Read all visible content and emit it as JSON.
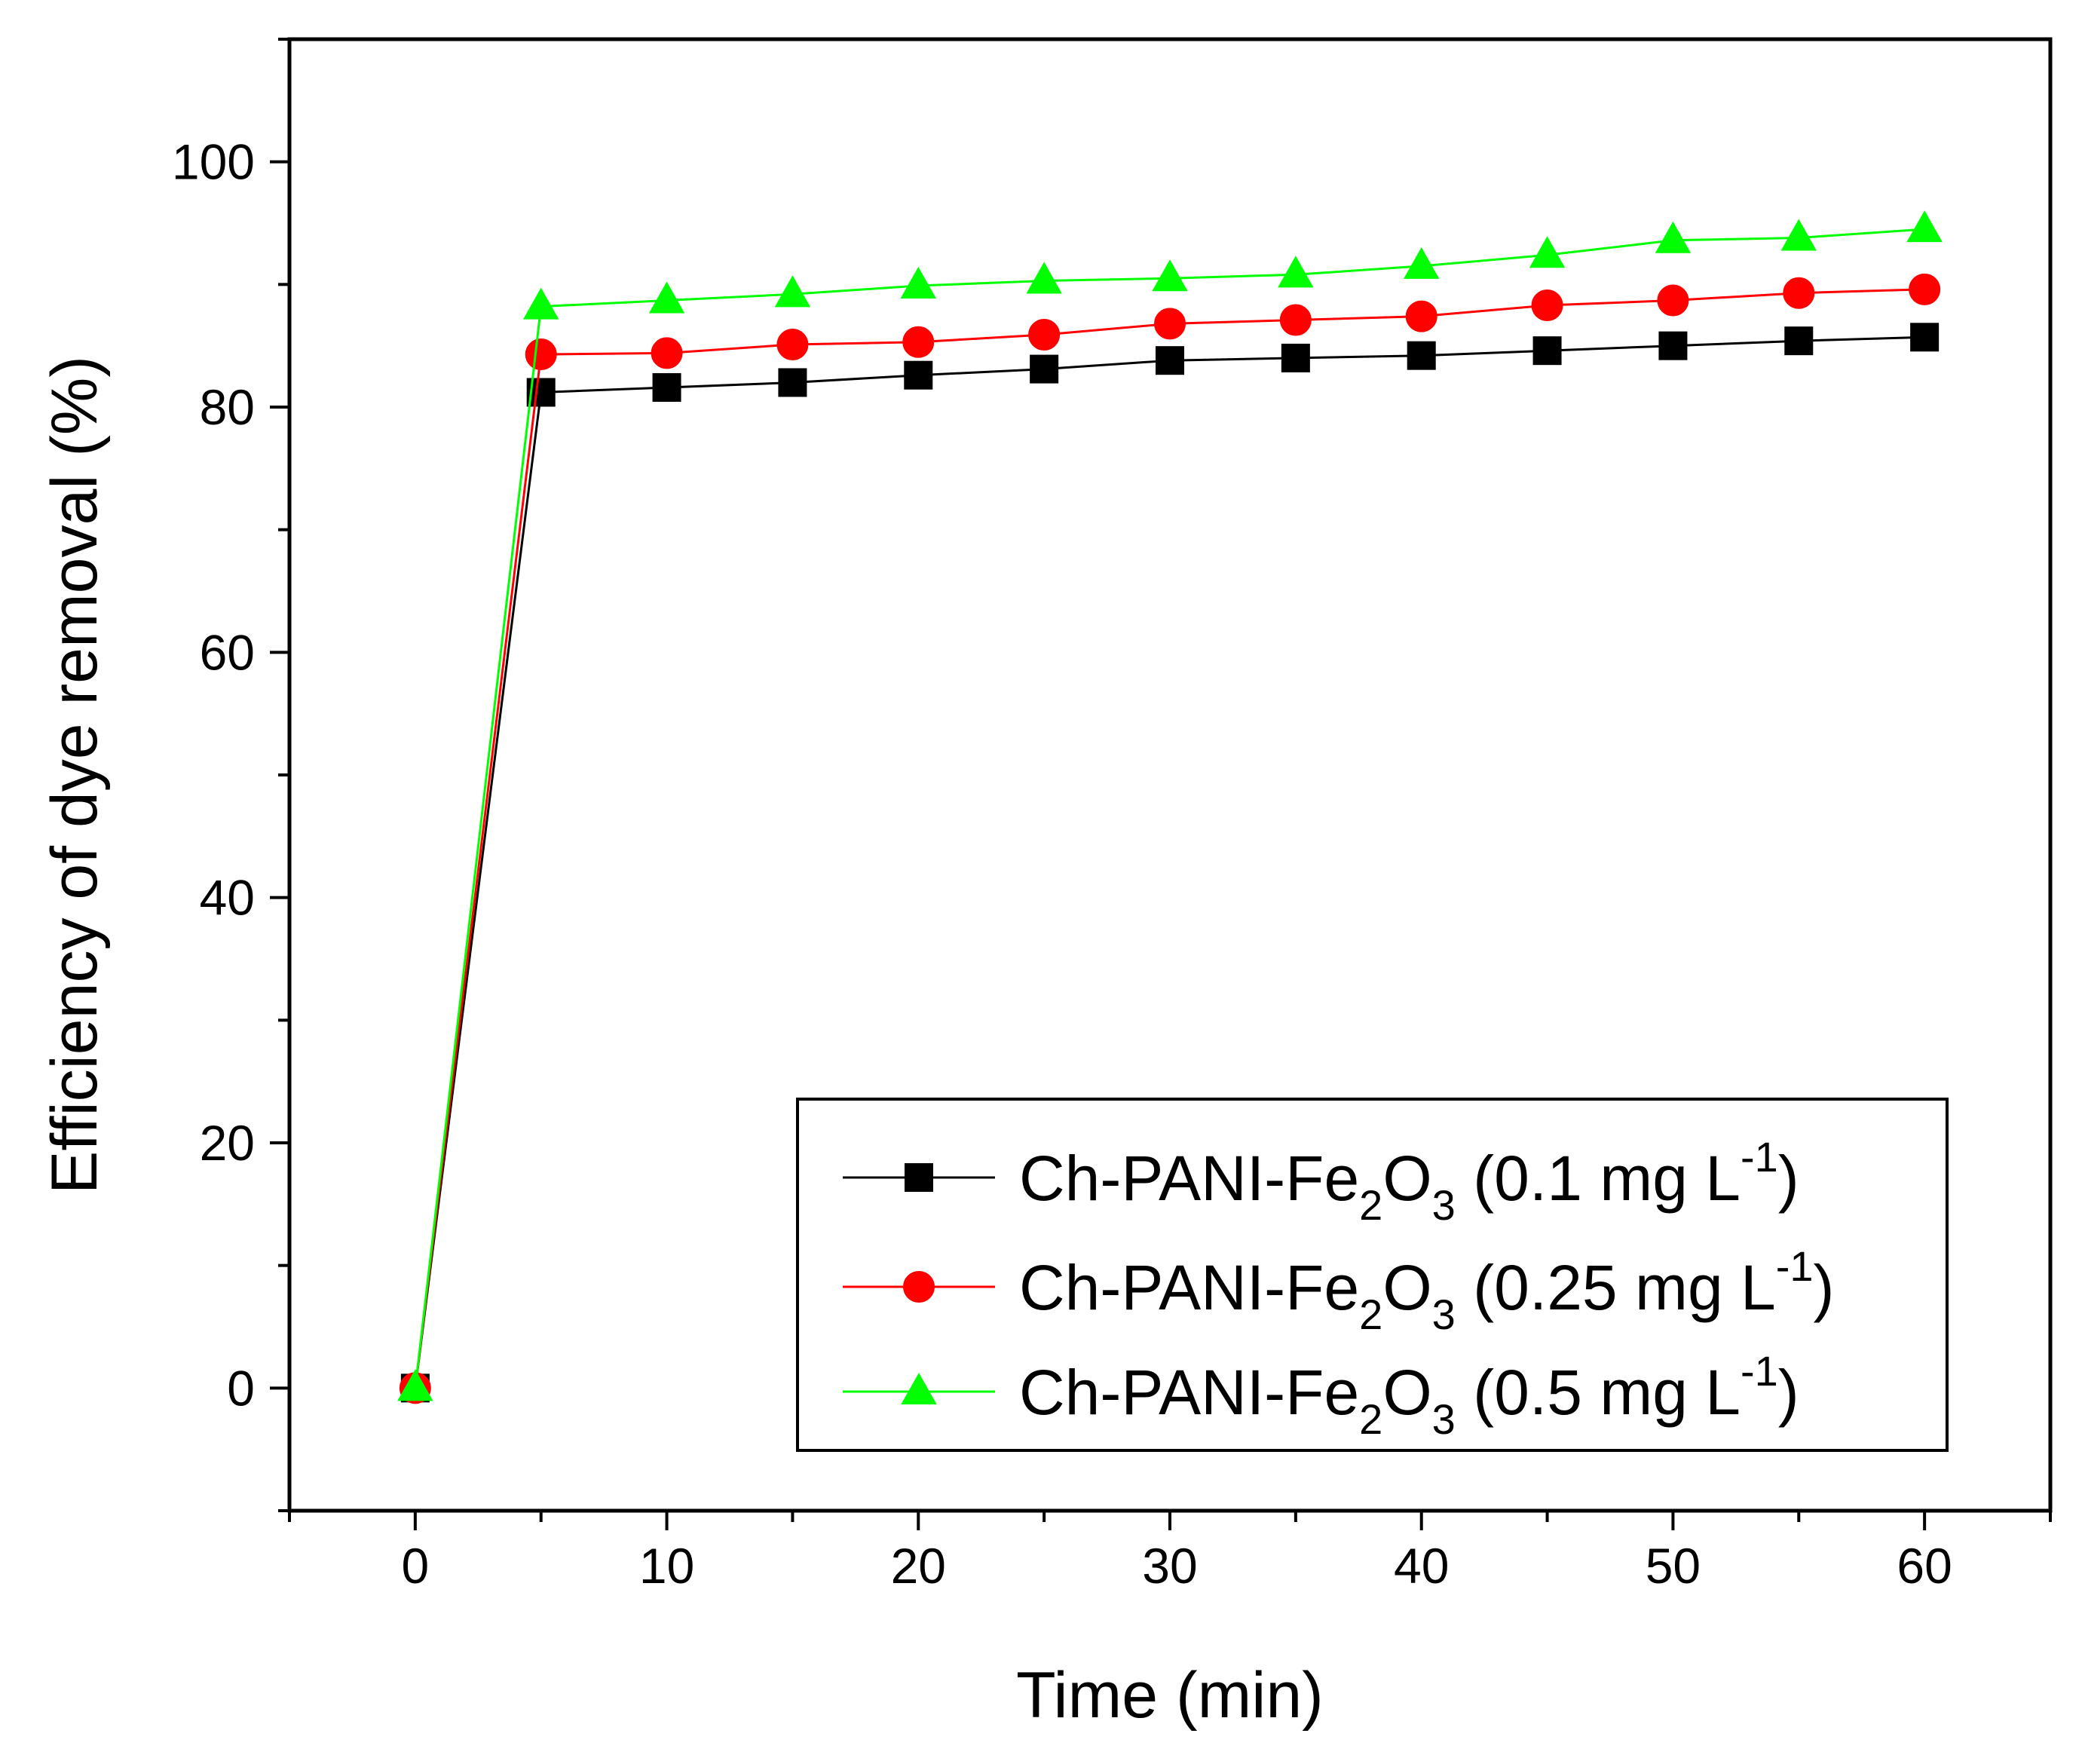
{
  "chart_data": {
    "type": "line",
    "title": "",
    "xlabel": "Time (min)",
    "ylabel": "Efficiency of dye removal (%)",
    "xlim": [
      -5,
      65
    ],
    "ylim": [
      -10,
      110
    ],
    "xticks": [
      0,
      10,
      20,
      30,
      40,
      50,
      60
    ],
    "yticks": [
      0,
      20,
      40,
      60,
      80,
      100
    ],
    "x_minor_step": 5,
    "y_minor_step": 10,
    "grid": false,
    "legend_position": "bottom-right",
    "x": [
      0,
      5,
      10,
      15,
      20,
      25,
      30,
      35,
      40,
      45,
      50,
      55,
      60
    ],
    "series": [
      {
        "name": "Ch-PANI-Fe2O3 (0.1 mg L-1)",
        "legend": {
          "prefix": "Ch-PANI-Fe",
          "sub1": "2",
          "mid": "O",
          "sub2": "3",
          "conc": " (0.1 mg L",
          "sup": "-1",
          "suffix": ")"
        },
        "color": "#000000",
        "marker": "square",
        "values": [
          0,
          81.2,
          81.6,
          82.0,
          82.6,
          83.1,
          83.8,
          84.0,
          84.2,
          84.6,
          85.0,
          85.4,
          85.7
        ]
      },
      {
        "name": "Ch-PANI-Fe2O3 (0.25 mg L-1)",
        "legend": {
          "prefix": "Ch-PANI-Fe",
          "sub1": "2",
          "mid": "O",
          "sub2": "3",
          "conc": " (0.25 mg L",
          "sup": "-1",
          "suffix": ")"
        },
        "color": "#ff0000",
        "marker": "circle",
        "values": [
          0,
          84.3,
          84.4,
          85.1,
          85.3,
          85.9,
          86.8,
          87.1,
          87.4,
          88.3,
          88.7,
          89.3,
          89.6
        ]
      },
      {
        "name": "Ch-PANI-Fe2O3 (0.5 mg L-1)",
        "legend": {
          "prefix": "Ch-PANI-Fe",
          "sub1": "2",
          "mid": "O",
          "sub2": "3",
          "conc": " (0.5 mg L",
          "sup": "-1",
          "suffix": ")"
        },
        "color": "#00ff00",
        "marker": "triangle",
        "values": [
          0,
          88.2,
          88.7,
          89.2,
          89.9,
          90.3,
          90.5,
          90.8,
          91.5,
          92.4,
          93.6,
          93.8,
          94.5
        ]
      }
    ]
  }
}
